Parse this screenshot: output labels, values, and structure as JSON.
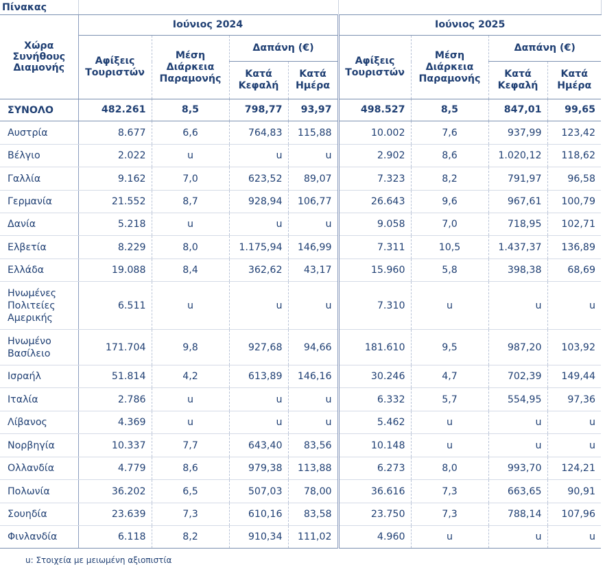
{
  "table": {
    "title": "Πίνακας",
    "col_country": "Χώρα Συνήθους Διαμονής",
    "period_2024": "Ιούνιος 2024",
    "period_2025": "Ιούνιος 2025",
    "col_arrivals": "Αφίξεις Τουριστών",
    "col_stay": "Μέση Διάρκεια Παραμονής",
    "col_spend": "Δαπάνη (€)",
    "col_per_capita": "Κατά Κεφαλή",
    "col_per_day": "Κατά Ημέρα",
    "total": [
      "ΣΥΝΟΛΟ",
      "482.261",
      "8,5",
      "798,77",
      "93,97",
      "498.527",
      "8,5",
      "847,01",
      "99,65"
    ],
    "rows": [
      [
        "Αυστρία",
        "8.677",
        "6,6",
        "764,83",
        "115,88",
        "10.002",
        "7,6",
        "937,99",
        "123,42"
      ],
      [
        "Βέλγιο",
        "2.022",
        "u",
        "u",
        "u",
        "2.902",
        "8,6",
        "1.020,12",
        "118,62"
      ],
      [
        "Γαλλία",
        "9.162",
        "7,0",
        "623,52",
        "89,07",
        "7.323",
        "8,2",
        "791,97",
        "96,58"
      ],
      [
        "Γερμανία",
        "21.552",
        "8,7",
        "928,94",
        "106,77",
        "26.643",
        "9,6",
        "967,61",
        "100,79"
      ],
      [
        "Δανία",
        "5.218",
        "u",
        "u",
        "u",
        "9.058",
        "7,0",
        "718,95",
        "102,71"
      ],
      [
        "Ελβετία",
        "8.229",
        "8,0",
        "1.175,94",
        "146,99",
        "7.311",
        "10,5",
        "1.437,37",
        "136,89"
      ],
      [
        "Ελλάδα",
        "19.088",
        "8,4",
        "362,62",
        "43,17",
        "15.960",
        "5,8",
        "398,38",
        "68,69"
      ],
      [
        "Ηνωμένες Πολιτείες Αμερικής",
        "6.511",
        "u",
        "u",
        "u",
        "7.310",
        "u",
        "u",
        "u"
      ],
      [
        "Ηνωμένο Βασίλειο",
        "171.704",
        "9,8",
        "927,68",
        "94,66",
        "181.610",
        "9,5",
        "987,20",
        "103,92"
      ],
      [
        "Ισραήλ",
        "51.814",
        "4,2",
        "613,89",
        "146,16",
        "30.246",
        "4,7",
        "702,39",
        "149,44"
      ],
      [
        "Ιταλία",
        "2.786",
        "u",
        "u",
        "u",
        "6.332",
        "5,7",
        "554,95",
        "97,36"
      ],
      [
        "Λίβανος",
        "4.369",
        "u",
        "u",
        "u",
        "5.462",
        "u",
        "u",
        "u"
      ],
      [
        "Νορβηγία",
        "10.337",
        "7,7",
        "643,40",
        "83,56",
        "10.148",
        "u",
        "u",
        "u"
      ],
      [
        "Ολλανδία",
        "4.779",
        "8,6",
        "979,38",
        "113,88",
        "6.273",
        "8,0",
        "993,70",
        "124,21"
      ],
      [
        "Πολωνία",
        "36.202",
        "6,5",
        "507,03",
        "78,00",
        "36.616",
        "7,3",
        "663,65",
        "90,91"
      ],
      [
        "Σουηδία",
        "23.639",
        "7,3",
        "610,16",
        "83,58",
        "23.750",
        "7,3",
        "788,14",
        "107,96"
      ],
      [
        "Φινλανδία",
        "6.118",
        "8,2",
        "910,34",
        "111,02",
        "4.960",
        "u",
        "u",
        "u"
      ]
    ]
  },
  "footnote": "u:  Στοιχεία με μειωμένη αξιοπιστία"
}
